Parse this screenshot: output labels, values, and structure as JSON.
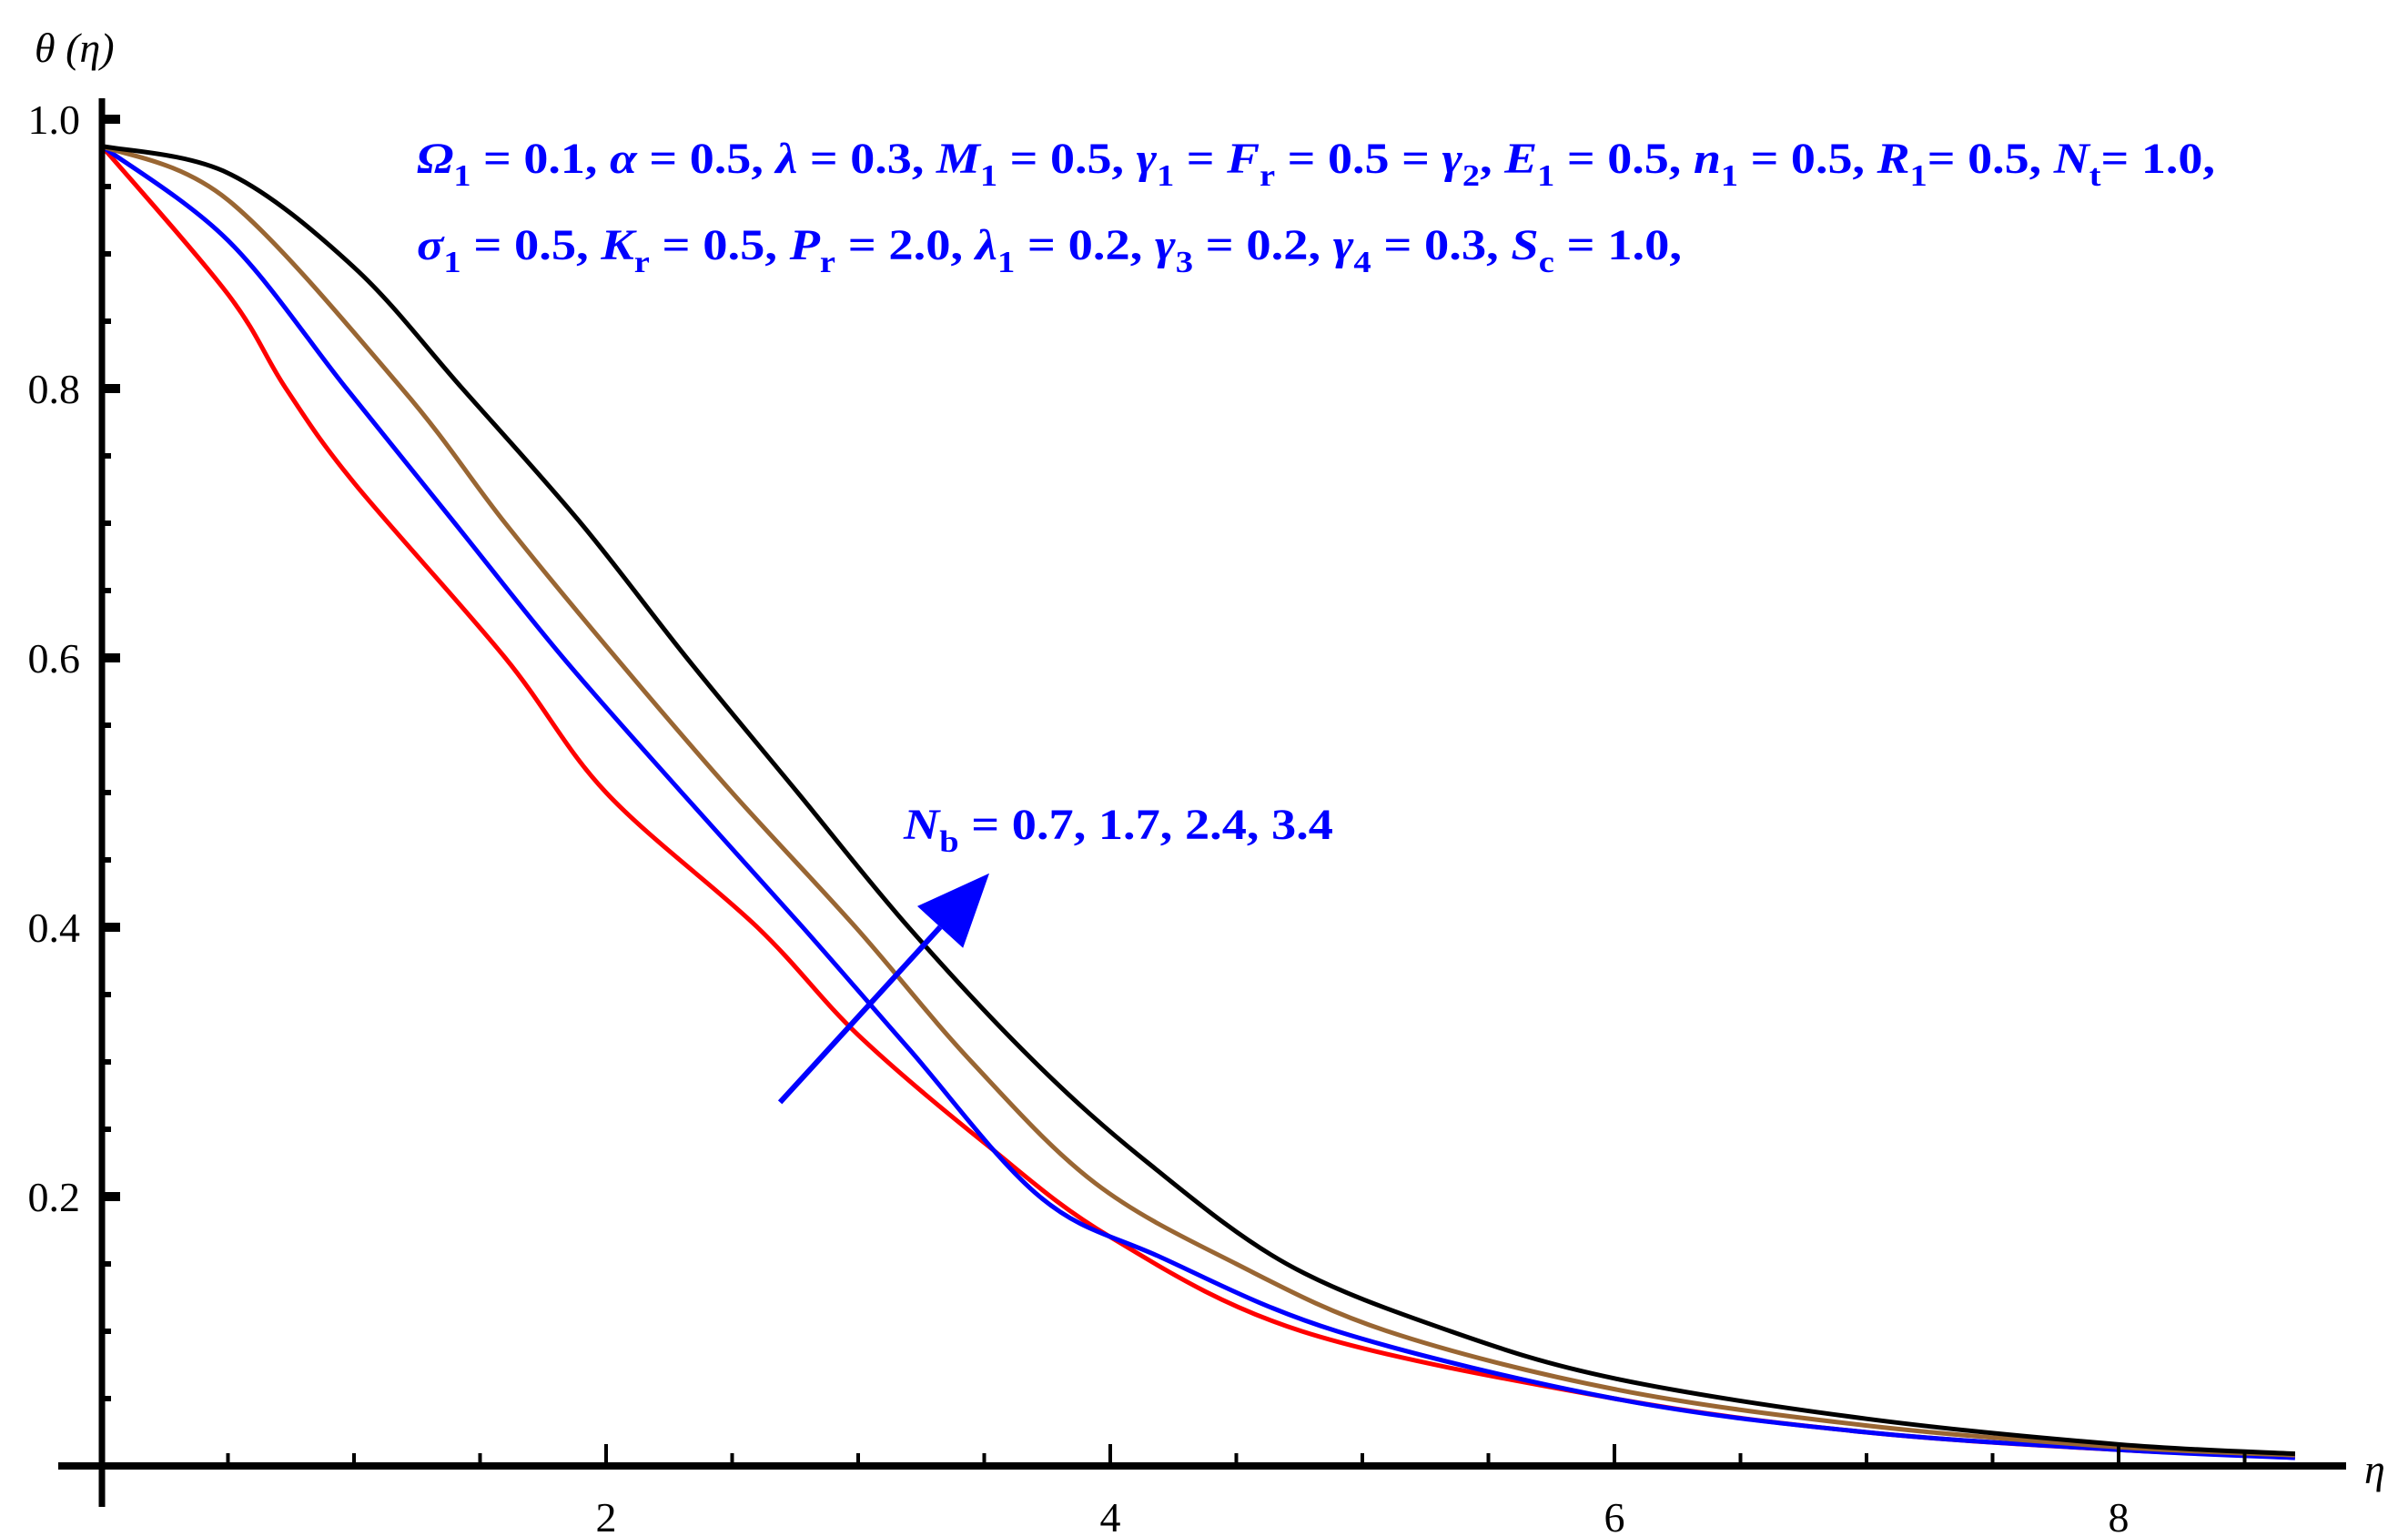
{
  "chart_data": {
    "type": "line",
    "xlabel": "η",
    "ylabel": "θ (η)",
    "xlim": [
      0,
      8.9
    ],
    "ylim": [
      0,
      1.02
    ],
    "x_ticks": [
      2,
      4,
      6,
      8
    ],
    "x_tick_labels": [
      "2",
      "4",
      "6",
      "8"
    ],
    "y_ticks": [
      0.2,
      0.4,
      0.6,
      0.8,
      1.0
    ],
    "y_tick_labels": [
      "0.2",
      "0.4",
      "0.6",
      "0.8",
      "1.0"
    ],
    "grid": false,
    "series": [
      {
        "color": "#ff0000",
        "x": [
          0,
          0.5,
          0.73,
          1.0,
          1.6,
          2.0,
          2.6,
          3.0,
          3.5,
          4.0,
          4.76,
          6.0,
          7.0,
          8.0,
          8.7
        ],
        "y": [
          0.98,
          0.87,
          0.8,
          0.73,
          0.6,
          0.5,
          0.4,
          0.32,
          0.24,
          0.17,
          0.1,
          0.05,
          0.025,
          0.012,
          0.007
        ]
      },
      {
        "color": "#0000ff",
        "x": [
          0,
          0.5,
          0.97,
          1.4,
          1.83,
          2.3,
          2.78,
          3.2,
          3.72,
          4.2,
          4.9,
          6.0,
          7.0,
          8.0,
          8.7
        ],
        "y": [
          0.98,
          0.91,
          0.8,
          0.7,
          0.6,
          0.5,
          0.4,
          0.31,
          0.2,
          0.155,
          0.1,
          0.05,
          0.025,
          0.012,
          0.006
        ]
      },
      {
        "color": "#996633",
        "x": [
          0,
          0.5,
          1.19,
          1.6,
          2.04,
          2.5,
          2.99,
          3.45,
          3.94,
          4.5,
          5.1,
          6.0,
          7.0,
          8.0,
          8.7
        ],
        "y": [
          0.98,
          0.94,
          0.8,
          0.7,
          0.6,
          0.5,
          0.4,
          0.3,
          0.21,
          0.15,
          0.1,
          0.057,
          0.03,
          0.014,
          0.008
        ]
      },
      {
        "color": "#000000",
        "x": [
          0,
          0.5,
          1.0,
          1.43,
          1.9,
          2.32,
          2.76,
          3.2,
          3.7,
          4.15,
          4.7,
          5.35,
          6.0,
          7.0,
          8.0,
          8.7
        ],
        "y": [
          0.98,
          0.96,
          0.89,
          0.8,
          0.7,
          0.6,
          0.5,
          0.4,
          0.3,
          0.225,
          0.15,
          0.1,
          0.065,
          0.035,
          0.016,
          0.009
        ]
      }
    ],
    "annotations": {
      "color": "#0000ff",
      "params_line1": [
        {
          "sym": "Ω",
          "sub": "1",
          "rest": " =  0.1, "
        },
        {
          "sym": "α",
          "sub": "",
          "rest": " = 0.5, "
        },
        {
          "sym": "λ",
          "sub": "",
          "rest": " = 0.3, "
        },
        {
          "sym": "M",
          "sub": "1",
          "rest": " = 0.5, "
        },
        {
          "sym": "γ",
          "sub": "1",
          "rest": " = "
        },
        {
          "sym": "F",
          "sub": "r",
          "rest": " = 0.5 = "
        },
        {
          "sym": "γ",
          "sub": "2",
          "rest": ", "
        },
        {
          "sym": "E",
          "sub": "1",
          "rest": " = 0.5, "
        },
        {
          "sym": "n",
          "sub": "1",
          "rest": " = 0.5, "
        },
        {
          "sym": "R",
          "sub": "1",
          "rest": "= 0.5, "
        },
        {
          "sym": "N",
          "sub": "t",
          "rest": "= 1.0,"
        }
      ],
      "params_line2": [
        {
          "sym": "σ",
          "sub": "1",
          "rest": " = 0.5,  "
        },
        {
          "sym": "K",
          "sub": "r",
          "rest": " = 0.5, "
        },
        {
          "sym": "P",
          "sub": "r",
          "rest": " = 2.0, "
        },
        {
          "sym": "λ",
          "sub": "1",
          "rest": " = 0.2, "
        },
        {
          "sym": "γ",
          "sub": "3",
          "rest": " = 0.2, "
        },
        {
          "sym": "γ",
          "sub": "4",
          "rest": " = 0.3, "
        },
        {
          "sym": "S",
          "sub": "c",
          "rest": " = 1.0,"
        }
      ],
      "arrow_label": [
        {
          "sym": "N",
          "sub": "b",
          "rest": "  = 0.7, 1.7, 2.4, 3.4"
        }
      ],
      "arrow": {
        "from": [
          2.69,
          0.27
        ],
        "to": [
          3.52,
          0.44
        ],
        "direction": "increasing N_b"
      }
    }
  }
}
